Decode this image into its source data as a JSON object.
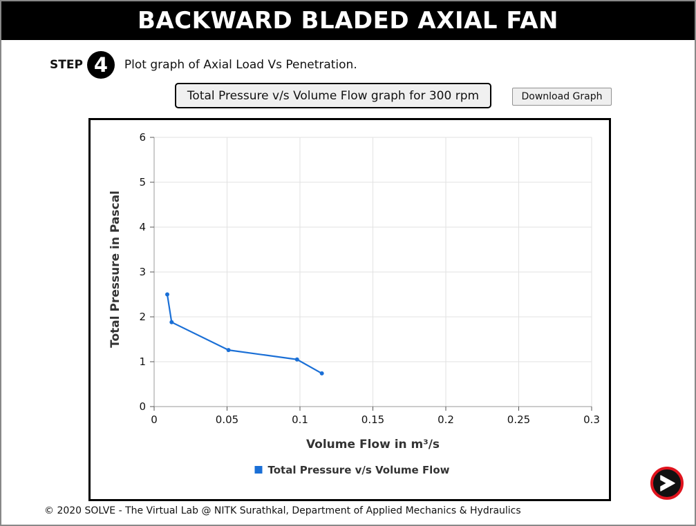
{
  "header": {
    "title": "BACKWARD BLADED AXIAL FAN"
  },
  "step": {
    "label": "STEP",
    "number": "4",
    "instruction": "Plot graph of Axial Load Vs Penetration."
  },
  "graph_title": "Total Pressure v/s Volume Flow graph for 300 rpm",
  "download_label": "Download Graph",
  "chart_data": {
    "type": "line",
    "title": "",
    "xlabel": "Volume Flow in m³/s",
    "ylabel": "Total Pressure in Pascal",
    "xlim": [
      0,
      0.3
    ],
    "ylim": [
      0,
      6
    ],
    "x_ticks": [
      "0",
      "0.05",
      "0.1",
      "0.15",
      "0.2",
      "0.25",
      "0.3"
    ],
    "y_ticks": [
      "0",
      "1",
      "2",
      "3",
      "4",
      "5",
      "6"
    ],
    "grid": true,
    "legend_position": "bottom",
    "series": [
      {
        "name": "Total Pressure v/s Volume Flow",
        "color": "#1a6fd6",
        "x": [
          0.009,
          0.012,
          0.051,
          0.098,
          0.115
        ],
        "y": [
          2.5,
          1.88,
          1.26,
          1.05,
          0.74
        ]
      }
    ]
  },
  "next_button": {
    "icon": "next-arrow-icon",
    "ring_color": "#e0141e"
  },
  "footer": {
    "text": "© 2020 SOLVE - The Virtual Lab @ NITK Surathkal, Department of Applied Mechanics & Hydraulics"
  }
}
